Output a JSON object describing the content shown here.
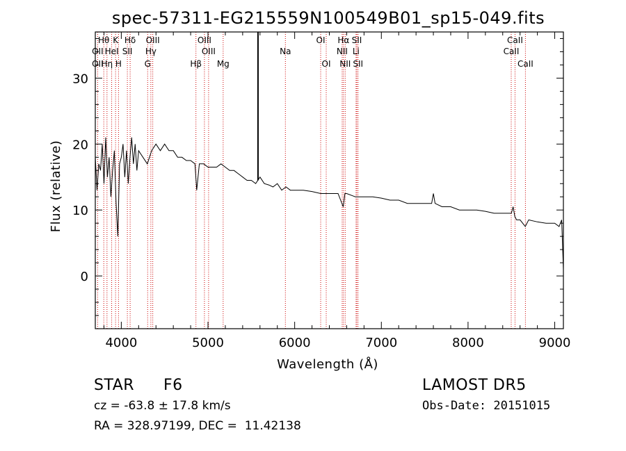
{
  "meta": {
    "object_class": "STAR",
    "subclass": "F6",
    "survey": "LAMOST DR5",
    "cz_text": "cz = -63.8 ± 17.8 km/s",
    "obs_date_text": "Obs-Date: 20151015",
    "coords_text": "RA = 328.97199, DEC =  11.42138"
  },
  "colors": {
    "spectrum": "#000000",
    "line_markers": "#cc0000",
    "axes": "#000000"
  },
  "chart_data": {
    "type": "line",
    "title": "spec-57311-EG215559N100549B01_sp15-049.fits",
    "xlabel": "Wavelength (Å)",
    "ylabel": "Flux (relative)",
    "xlim": [
      3700,
      9100
    ],
    "ylim": [
      -8,
      37
    ],
    "x_ticks": [
      4000,
      5000,
      6000,
      7000,
      8000,
      9000
    ],
    "y_ticks": [
      0,
      10,
      20,
      30
    ],
    "grid": false,
    "series": [
      {
        "x": [
          3700,
          3720,
          3740,
          3760,
          3780,
          3800,
          3820,
          3840,
          3860,
          3880,
          3900,
          3920,
          3940,
          3960,
          3980,
          4000,
          4020,
          4040,
          4060,
          4080,
          4100,
          4120,
          4140,
          4160,
          4180,
          4200,
          4250,
          4300,
          4350,
          4400,
          4450,
          4500,
          4550,
          4600,
          4650,
          4700,
          4750,
          4800,
          4850,
          4870,
          4900,
          4950,
          5000,
          5050,
          5100,
          5150,
          5200,
          5250,
          5300,
          5350,
          5400,
          5450,
          5500,
          5550,
          5600,
          5650,
          5700,
          5750,
          5800,
          5850,
          5900,
          5950,
          6000,
          6100,
          6200,
          6300,
          6400,
          6500,
          6560,
          6580,
          6600,
          6700,
          6800,
          6900,
          7000,
          7100,
          7200,
          7300,
          7400,
          7500,
          7580,
          7600,
          7620,
          7700,
          7800,
          7900,
          8000,
          8100,
          8200,
          8300,
          8400,
          8450,
          8500,
          8520,
          8540,
          8560,
          8600,
          8660,
          8700,
          8800,
          8900,
          9000,
          9050,
          9080,
          9100
        ],
        "y": [
          18,
          13,
          17,
          16,
          20,
          14,
          21,
          15,
          18,
          12,
          16,
          19,
          11,
          6,
          17,
          18,
          20,
          15,
          19,
          14,
          18,
          21,
          17,
          20,
          16,
          19,
          18,
          17,
          19,
          20,
          19,
          20,
          19,
          19,
          18,
          18,
          17.5,
          17.5,
          17,
          13,
          17,
          17,
          16.5,
          16.5,
          16.5,
          17,
          16.5,
          16,
          16,
          15.5,
          15,
          14.5,
          14.5,
          14,
          15,
          14,
          13.8,
          13.5,
          14,
          13,
          13.5,
          13,
          13,
          13,
          12.8,
          12.5,
          12.5,
          12.5,
          10.5,
          12.5,
          12.5,
          12,
          12,
          12,
          11.8,
          11.5,
          11.5,
          11,
          11,
          11,
          11,
          12.5,
          11,
          10.5,
          10.5,
          10,
          10,
          10,
          9.8,
          9.5,
          9.5,
          9.5,
          9.5,
          10.5,
          9,
          8.5,
          8.5,
          7.5,
          8.5,
          8.2,
          8,
          8,
          7.5,
          8.5,
          1
        ]
      }
    ],
    "annotations": [
      {
        "label": "Hθ",
        "wavelength": 3798,
        "row": 1
      },
      {
        "label": "K",
        "wavelength": 3934,
        "row": 1
      },
      {
        "label": "Hδ",
        "wavelength": 4102,
        "row": 1
      },
      {
        "label": "OIII",
        "wavelength": 4363,
        "row": 1
      },
      {
        "label": "OIII",
        "wavelength": 4959,
        "row": 1
      },
      {
        "label": "OI",
        "wavelength": 6300,
        "row": 1
      },
      {
        "label": "Hα",
        "wavelength": 6563,
        "row": 1
      },
      {
        "label": "SII",
        "wavelength": 6717,
        "row": 1
      },
      {
        "label": "CaII",
        "wavelength": 8542,
        "row": 1
      },
      {
        "label": "OII",
        "wavelength": 3727,
        "row": 2
      },
      {
        "label": "HeI",
        "wavelength": 3889,
        "row": 2
      },
      {
        "label": "SII",
        "wavelength": 4070,
        "row": 2
      },
      {
        "label": "Hγ",
        "wavelength": 4341,
        "row": 2
      },
      {
        "label": "OIII",
        "wavelength": 5007,
        "row": 2
      },
      {
        "label": "Na",
        "wavelength": 5893,
        "row": 2
      },
      {
        "label": "NII",
        "wavelength": 6548,
        "row": 2
      },
      {
        "label": "Li",
        "wavelength": 6708,
        "row": 2
      },
      {
        "label": "CaII",
        "wavelength": 8498,
        "row": 2
      },
      {
        "label": "OII",
        "wavelength": 3727,
        "row": 3
      },
      {
        "label": "Hη",
        "wavelength": 3835,
        "row": 3
      },
      {
        "label": "H",
        "wavelength": 3968,
        "row": 3
      },
      {
        "label": "G",
        "wavelength": 4304,
        "row": 3
      },
      {
        "label": "Hβ",
        "wavelength": 4861,
        "row": 3
      },
      {
        "label": "Mg",
        "wavelength": 5175,
        "row": 3
      },
      {
        "label": "OI",
        "wavelength": 6364,
        "row": 3
      },
      {
        "label": "NII",
        "wavelength": 6583,
        "row": 3
      },
      {
        "label": "SII",
        "wavelength": 6731,
        "row": 3
      },
      {
        "label": "CaII",
        "wavelength": 8662,
        "row": 3
      }
    ],
    "marker_wavelengths": [
      3727,
      3798,
      3835,
      3889,
      3934,
      3968,
      4070,
      4102,
      4304,
      4341,
      4363,
      4861,
      4959,
      5007,
      5175,
      5893,
      6300,
      6364,
      6548,
      6563,
      6583,
      6708,
      6717,
      6731,
      8498,
      8542,
      8662
    ],
    "vline": 5577
  }
}
